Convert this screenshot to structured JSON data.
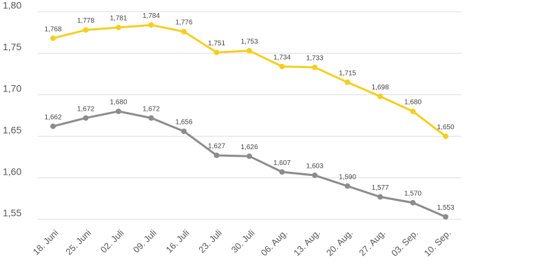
{
  "chart_data": {
    "type": "line",
    "categories": [
      "18. Juni",
      "25. Juni",
      "02. Juli",
      "09. Juli",
      "16. Juli",
      "23. Juli",
      "30. Juli",
      "06. Aug.",
      "13. Aug.",
      "20. Aug.",
      "27. Aug.",
      "03. Sep.",
      "10. Sep."
    ],
    "series": [
      {
        "color": "#f5cf1f",
        "values": [
          1.768,
          1.778,
          1.781,
          1.784,
          1.776,
          1.751,
          1.753,
          1.734,
          1.733,
          1.715,
          1.698,
          1.68,
          1.65
        ],
        "value_labels": [
          "1,768",
          "1,778",
          "1,781",
          "1,784",
          "1,776",
          "1,751",
          "1,753",
          "1,734",
          "1,733",
          "1,715",
          "1,698",
          "1,680",
          "1,650"
        ]
      },
      {
        "color": "#8c8c8c",
        "values": [
          1.662,
          1.672,
          1.68,
          1.672,
          1.656,
          1.627,
          1.626,
          1.607,
          1.603,
          1.59,
          1.577,
          1.57,
          1.553
        ],
        "value_labels": [
          "1,662",
          "1,672",
          "1,680",
          "1,672",
          "1,656",
          "1,627",
          "1,626",
          "1,607",
          "1,603",
          "1,590",
          "1,577",
          "1,570",
          "1,553"
        ]
      }
    ],
    "ylim": [
      1.55,
      1.8
    ],
    "yticks": [
      {
        "value": 1.55,
        "label": "1,55"
      },
      {
        "value": 1.6,
        "label": "1,60"
      },
      {
        "value": 1.65,
        "label": "1,65"
      },
      {
        "value": 1.7,
        "label": "1,70"
      },
      {
        "value": 1.75,
        "label": "1,75"
      },
      {
        "value": 1.8,
        "label": "1,80"
      }
    ],
    "grid": true
  }
}
